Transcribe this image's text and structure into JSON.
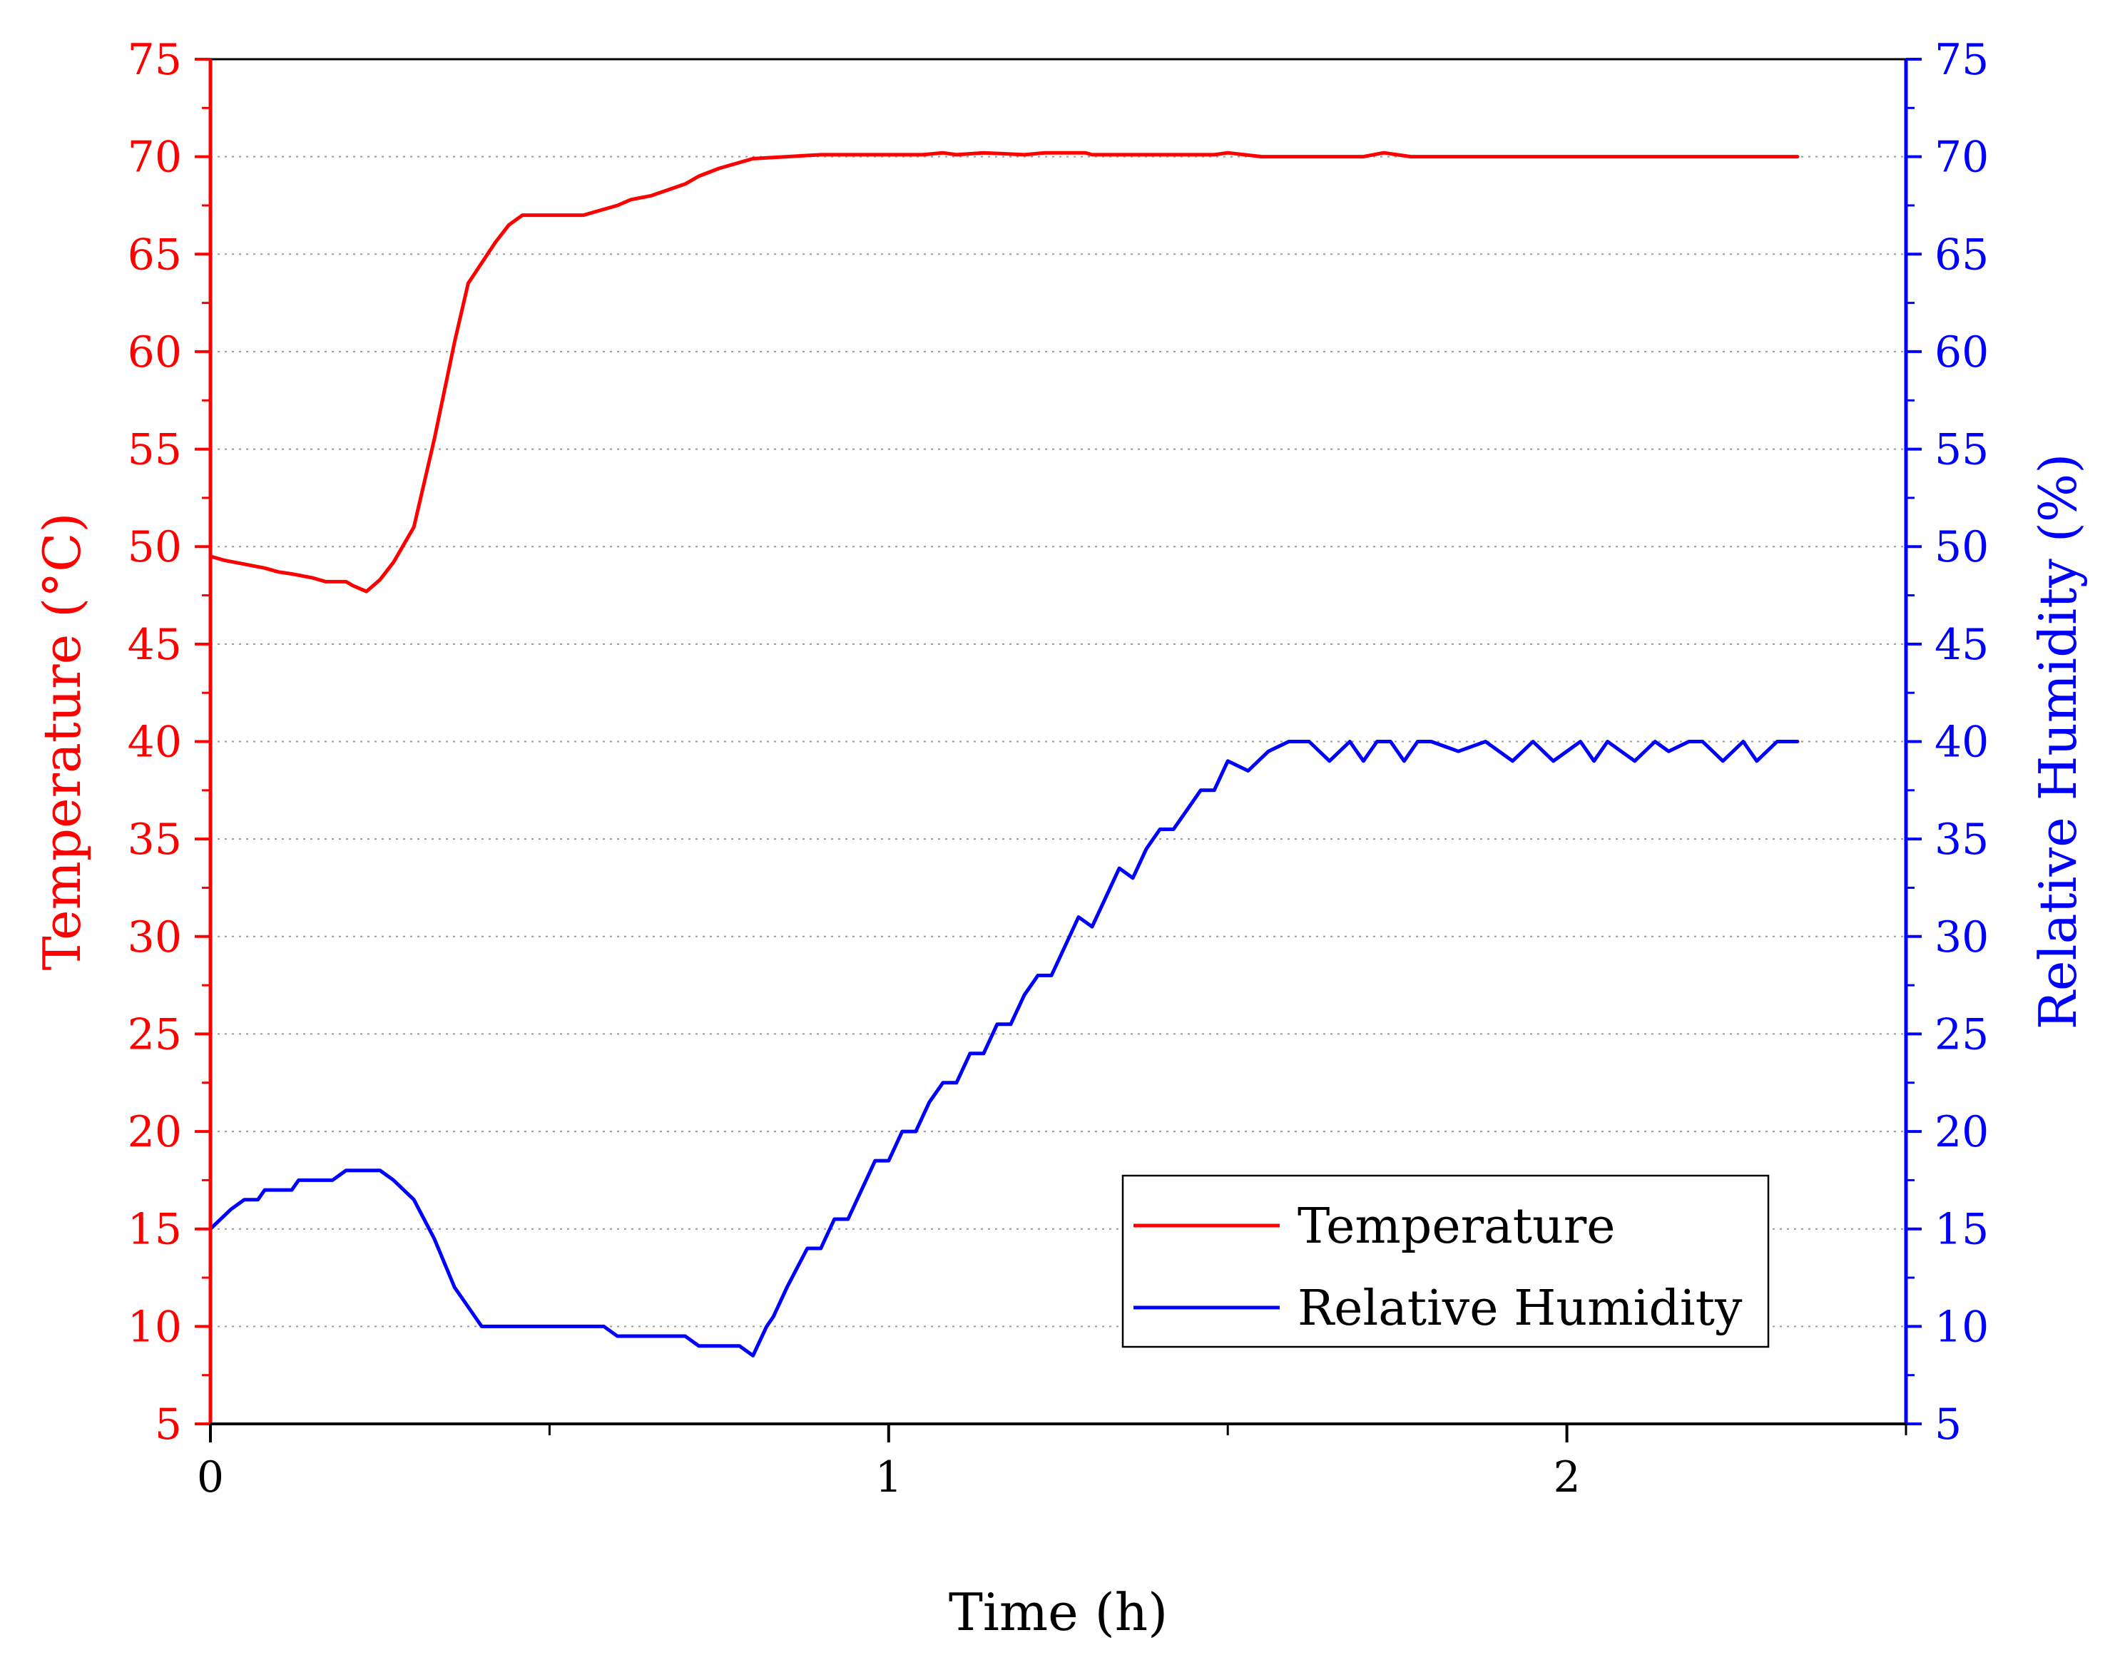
{
  "chart_data": {
    "type": "line",
    "xlabel": "Time (h)",
    "ylabel_left": "Temperature (°C)",
    "ylabel_right": "Relative Humidity (%)",
    "xlim": [
      0,
      2.5
    ],
    "ylim_left": [
      5,
      75
    ],
    "ylim_right": [
      5,
      75
    ],
    "x_ticks": [
      "0",
      "1",
      "2"
    ],
    "x_tick_values": [
      0,
      1,
      2
    ],
    "x_minor_tick_values": [
      0.5,
      1.5,
      2.5
    ],
    "y_tick_values": [
      5,
      10,
      15,
      20,
      25,
      30,
      35,
      40,
      45,
      50,
      55,
      60,
      65,
      70,
      75
    ],
    "y_ticks": [
      "5",
      "10",
      "15",
      "20",
      "25",
      "30",
      "35",
      "40",
      "45",
      "50",
      "55",
      "60",
      "65",
      "70",
      "75"
    ],
    "grid": "horizontal dotted",
    "legend_position": "lower-right",
    "colors": {
      "temperature": "#ff0000",
      "humidity": "#0000ff",
      "axes": "#000000"
    },
    "series": [
      {
        "name": "Temperature",
        "axis": "left",
        "color": "#ff0000",
        "x": [
          0,
          0.02,
          0.05,
          0.08,
          0.1,
          0.12,
          0.15,
          0.17,
          0.2,
          0.21,
          0.23,
          0.25,
          0.27,
          0.3,
          0.33,
          0.36,
          0.38,
          0.42,
          0.44,
          0.46,
          0.5,
          0.52,
          0.55,
          0.58,
          0.6,
          0.62,
          0.65,
          0.7,
          0.72,
          0.75,
          0.8,
          0.85,
          0.9,
          0.95,
          1.0,
          1.05,
          1.08,
          1.1,
          1.14,
          1.2,
          1.23,
          1.25,
          1.29,
          1.3,
          1.4,
          1.48,
          1.5,
          1.55,
          1.6,
          1.65,
          1.7,
          1.73,
          1.77,
          1.8,
          1.9,
          2.0,
          2.05,
          2.1,
          2.2,
          2.34
        ],
        "y": [
          49.5,
          49.3,
          49.1,
          48.9,
          48.7,
          48.6,
          48.4,
          48.2,
          48.2,
          48.0,
          47.7,
          48.3,
          49.2,
          51.0,
          55.5,
          60.5,
          63.5,
          65.6,
          66.5,
          67.0,
          67.0,
          67.0,
          67.0,
          67.3,
          67.5,
          67.8,
          68.0,
          68.6,
          69.0,
          69.4,
          69.9,
          70.0,
          70.1,
          70.1,
          70.1,
          70.1,
          70.2,
          70.1,
          70.2,
          70.1,
          70.2,
          70.2,
          70.2,
          70.1,
          70.1,
          70.1,
          70.2,
          70.0,
          70.0,
          70.0,
          70.0,
          70.2,
          70.0,
          70.0,
          70.0,
          70.0,
          70.0,
          70.0,
          70.0,
          70.0
        ]
      },
      {
        "name": "Relative Humidity",
        "axis": "right",
        "color": "#0000ff",
        "x": [
          0,
          0.03,
          0.05,
          0.07,
          0.08,
          0.1,
          0.12,
          0.13,
          0.15,
          0.18,
          0.2,
          0.23,
          0.25,
          0.27,
          0.3,
          0.33,
          0.36,
          0.38,
          0.4,
          0.44,
          0.5,
          0.55,
          0.58,
          0.6,
          0.65,
          0.7,
          0.72,
          0.78,
          0.8,
          0.82,
          0.83,
          0.85,
          0.88,
          0.9,
          0.92,
          0.94,
          0.96,
          0.98,
          1.0,
          1.02,
          1.04,
          1.06,
          1.08,
          1.1,
          1.12,
          1.14,
          1.16,
          1.18,
          1.2,
          1.22,
          1.24,
          1.26,
          1.28,
          1.3,
          1.32,
          1.34,
          1.36,
          1.38,
          1.4,
          1.42,
          1.44,
          1.46,
          1.48,
          1.5,
          1.53,
          1.56,
          1.59,
          1.62,
          1.65,
          1.68,
          1.7,
          1.72,
          1.74,
          1.76,
          1.78,
          1.8,
          1.84,
          1.88,
          1.92,
          1.95,
          1.98,
          2.0,
          2.02,
          2.04,
          2.06,
          2.1,
          2.13,
          2.15,
          2.18,
          2.2,
          2.23,
          2.26,
          2.28,
          2.31,
          2.34
        ],
        "y": [
          15.0,
          16.0,
          16.5,
          16.5,
          17.0,
          17.0,
          17.0,
          17.5,
          17.5,
          17.5,
          18.0,
          18.0,
          18.0,
          17.5,
          16.5,
          14.5,
          12.0,
          11.0,
          10.0,
          10.0,
          10.0,
          10.0,
          10.0,
          9.5,
          9.5,
          9.5,
          9.0,
          9.0,
          8.5,
          10.0,
          10.5,
          12.0,
          14.0,
          14.0,
          15.5,
          15.5,
          17.0,
          18.5,
          18.5,
          20.0,
          20.0,
          21.5,
          22.5,
          22.5,
          24.0,
          24.0,
          25.5,
          25.5,
          27.0,
          28.0,
          28.0,
          29.5,
          31.0,
          30.5,
          32.0,
          33.5,
          33.0,
          34.5,
          35.5,
          35.5,
          36.5,
          37.5,
          37.5,
          39.0,
          38.5,
          39.5,
          40.0,
          40.0,
          39.0,
          40.0,
          39.0,
          40.0,
          40.0,
          39.0,
          40.0,
          40.0,
          39.5,
          40.0,
          39.0,
          40.0,
          39.0,
          39.5,
          40.0,
          39.0,
          40.0,
          39.0,
          40.0,
          39.5,
          40.0,
          40.0,
          39.0,
          40.0,
          39.0,
          40.0,
          40.0
        ]
      }
    ],
    "legend": [
      "Temperature",
      "Relative Humidity"
    ]
  }
}
